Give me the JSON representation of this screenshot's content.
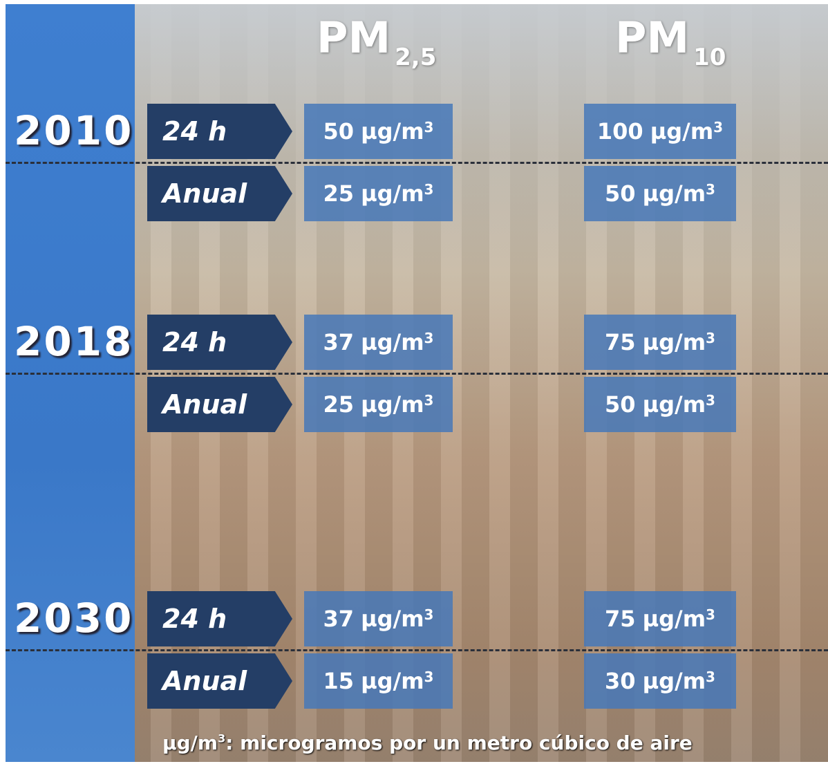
{
  "header": {
    "columns": [
      {
        "main": "PM",
        "sub": "2,5"
      },
      {
        "main": "PM",
        "sub": "10"
      }
    ]
  },
  "years": [
    {
      "year": "2010",
      "rows": [
        {
          "period": "24 h",
          "cells": [
            {
              "value": "50",
              "unit": "µg/m",
              "exp": "3"
            },
            {
              "value": "100",
              "unit": "µg/m",
              "exp": "3"
            }
          ]
        },
        {
          "period": "Anual",
          "cells": [
            {
              "value": "25",
              "unit": "µg/m",
              "exp": "3"
            },
            {
              "value": "50",
              "unit": "µg/m",
              "exp": "3"
            }
          ]
        }
      ]
    },
    {
      "year": "2018",
      "rows": [
        {
          "period": "24 h",
          "cells": [
            {
              "value": "37",
              "unit": "µg/m",
              "exp": "3"
            },
            {
              "value": "75",
              "unit": "µg/m",
              "exp": "3"
            }
          ]
        },
        {
          "period": "Anual",
          "cells": [
            {
              "value": "25",
              "unit": "µg/m",
              "exp": "3"
            },
            {
              "value": "50",
              "unit": "µg/m",
              "exp": "3"
            }
          ]
        }
      ]
    },
    {
      "year": "2030",
      "rows": [
        {
          "period": "24 h",
          "cells": [
            {
              "value": "37",
              "unit": "µg/m",
              "exp": "3"
            },
            {
              "value": "75",
              "unit": "µg/m",
              "exp": "3"
            }
          ]
        },
        {
          "period": "Anual",
          "cells": [
            {
              "value": "15",
              "unit": "µg/m",
              "exp": "3"
            },
            {
              "value": "30",
              "unit": "µg/m",
              "exp": "3"
            }
          ]
        }
      ]
    }
  ],
  "footnote": {
    "unit": "µg/m",
    "exp": "3",
    "text": ": microgramos por un metro cúbico de aire"
  }
}
